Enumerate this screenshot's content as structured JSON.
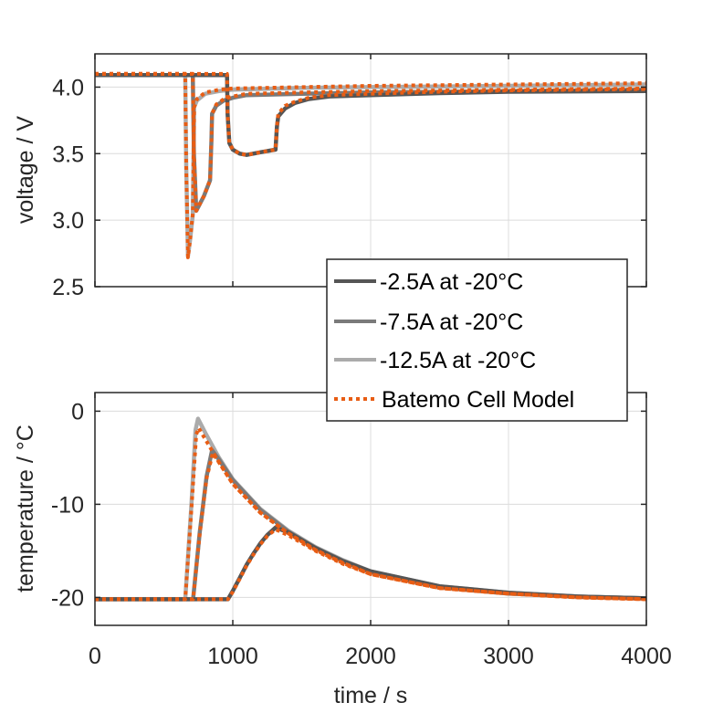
{
  "chart_data": [
    {
      "type": "line",
      "id": "voltage",
      "title": "",
      "xlabel": "",
      "ylabel": "voltage / V",
      "xlim": [
        0,
        4000
      ],
      "ylim": [
        2.5,
        4.25
      ],
      "xticks": [
        0,
        1000,
        2000,
        3000,
        4000
      ],
      "xtick_labels": [],
      "yticks": [
        2.5,
        3.0,
        3.5,
        4.0
      ],
      "ytick_labels": [
        "2.5",
        "3.0",
        "3.5",
        "4.0"
      ],
      "grid": true,
      "series": [
        {
          "name": "-12.5A at -20°C",
          "style": "solid",
          "color": "#ababab",
          "x": [
            0,
            655,
            662,
            675,
            690,
            710,
            715,
            720,
            740,
            800,
            900,
            1000,
            1500,
            2000,
            3000,
            4000
          ],
          "y": [
            4.09,
            4.09,
            3.4,
            2.73,
            2.85,
            3.04,
            3.5,
            3.85,
            3.9,
            3.95,
            3.97,
            3.98,
            3.995,
            4.0,
            4.01,
            4.02
          ]
        },
        {
          "name": "-7.5A at -20°C",
          "style": "solid",
          "color": "#7a7a7a",
          "x": [
            0,
            710,
            718,
            735,
            790,
            835,
            845,
            850,
            880,
            935,
            1000,
            1100,
            1500,
            2000,
            3000,
            4000
          ],
          "y": [
            4.09,
            4.09,
            3.5,
            3.07,
            3.18,
            3.3,
            3.6,
            3.8,
            3.86,
            3.9,
            3.92,
            3.94,
            3.95,
            3.96,
            3.97,
            3.98
          ]
        },
        {
          "name": "-2.5A at -20°C",
          "style": "solid",
          "color": "#555555",
          "x": [
            0,
            958,
            962,
            975,
            1000,
            1050,
            1100,
            1200,
            1310,
            1320,
            1330,
            1380,
            1450,
            1550,
            1700,
            2000,
            2500,
            3000,
            4000
          ],
          "y": [
            4.09,
            4.09,
            3.8,
            3.58,
            3.53,
            3.5,
            3.49,
            3.51,
            3.53,
            3.7,
            3.78,
            3.84,
            3.88,
            3.91,
            3.93,
            3.94,
            3.955,
            3.965,
            3.97
          ]
        },
        {
          "name": "Batemo Cell Model",
          "style": "dotted",
          "color": "#e85d14",
          "x": [
            0,
            655,
            662,
            675,
            690,
            710,
            715,
            720,
            740,
            800,
            900,
            1000,
            1500,
            2000,
            3000,
            4000
          ],
          "y": [
            4.1,
            4.1,
            3.4,
            2.72,
            2.85,
            3.05,
            3.5,
            3.85,
            3.91,
            3.96,
            3.98,
            3.99,
            4.0,
            4.01,
            4.02,
            4.03
          ]
        },
        {
          "name": "Batemo Cell Model",
          "style": "dotted",
          "color": "#e85d14",
          "x": [
            0,
            710,
            718,
            735,
            790,
            835,
            845,
            850,
            880,
            935,
            1000,
            1100,
            1500,
            2000,
            3000,
            4000
          ],
          "y": [
            4.1,
            4.1,
            3.5,
            3.07,
            3.18,
            3.3,
            3.6,
            3.8,
            3.87,
            3.91,
            3.93,
            3.95,
            3.96,
            3.97,
            3.98,
            3.99
          ]
        },
        {
          "name": "Batemo Cell Model",
          "style": "dotted",
          "color": "#e85d14",
          "x": [
            0,
            958,
            962,
            975,
            1000,
            1050,
            1100,
            1200,
            1310,
            1320,
            1330,
            1380,
            1450,
            1550,
            1700,
            2000,
            2500,
            3000,
            4000
          ],
          "y": [
            4.1,
            4.1,
            3.8,
            3.58,
            3.53,
            3.5,
            3.49,
            3.51,
            3.53,
            3.7,
            3.8,
            3.86,
            3.89,
            3.92,
            3.94,
            3.95,
            3.965,
            3.975,
            3.985
          ]
        }
      ],
      "legend": {
        "location": "bottom-right",
        "entries": [
          {
            "label": "-2.5A at -20°C",
            "color": "#555555",
            "style": "solid"
          },
          {
            "label": "-7.5A at -20°C",
            "color": "#7a7a7a",
            "style": "solid"
          },
          {
            "label": "-12.5A at -20°C",
            "color": "#ababab",
            "style": "solid"
          },
          {
            "label": "Batemo Cell Model",
            "color": "#e85d14",
            "style": "dotted"
          }
        ]
      }
    },
    {
      "type": "line",
      "id": "temperature",
      "title": "",
      "xlabel": "time / s",
      "ylabel": "temperature / °C",
      "xlim": [
        0,
        4000
      ],
      "ylim": [
        -23,
        2
      ],
      "xticks": [
        0,
        1000,
        2000,
        3000,
        4000
      ],
      "xtick_labels": [
        "0",
        "1000",
        "2000",
        "3000",
        "4000"
      ],
      "yticks": [
        -20,
        -10,
        0
      ],
      "ytick_labels": [
        "-20",
        "-10",
        "0"
      ],
      "grid": true,
      "series": [
        {
          "name": "-12.5A at -20°C",
          "style": "solid",
          "color": "#ababab",
          "x": [
            0,
            655,
            700,
            730,
            748,
            800,
            900,
            1000,
            1200,
            1400,
            1600,
            1800,
            2000,
            2500,
            3000,
            3500,
            4000
          ],
          "y": [
            -20.2,
            -20.2,
            -10,
            -2,
            -0.8,
            -2.3,
            -5,
            -7.3,
            -10.5,
            -12.8,
            -14.6,
            -16,
            -17.2,
            -18.8,
            -19.5,
            -19.9,
            -20.1
          ]
        },
        {
          "name": "-7.5A at -20°C",
          "style": "solid",
          "color": "#7a7a7a",
          "x": [
            0,
            712,
            760,
            810,
            850,
            900,
            1000,
            1200,
            1400,
            1600,
            1800,
            2000,
            2500,
            3000,
            3500,
            4000
          ],
          "y": [
            -20.2,
            -20.2,
            -13,
            -7,
            -4.2,
            -5.2,
            -7.4,
            -10.6,
            -12.9,
            -14.7,
            -16.1,
            -17.3,
            -18.9,
            -19.6,
            -19.9,
            -20.1
          ]
        },
        {
          "name": "-2.5A at -20°C",
          "style": "solid",
          "color": "#555555",
          "x": [
            0,
            965,
            1000,
            1050,
            1100,
            1150,
            1200,
            1250,
            1310,
            1400,
            1600,
            1800,
            2000,
            2500,
            3000,
            3500,
            4000
          ],
          "y": [
            -20.2,
            -20.2,
            -19.3,
            -17.9,
            -16.5,
            -15.3,
            -14.2,
            -13.3,
            -12.5,
            -13.0,
            -14.7,
            -16.1,
            -17.2,
            -18.8,
            -19.5,
            -19.9,
            -20.1
          ]
        },
        {
          "name": "Batemo Cell Model",
          "style": "dotted",
          "color": "#e85d14",
          "x": [
            0,
            655,
            700,
            735,
            752,
            800,
            900,
            1000,
            1200,
            1400,
            1600,
            1800,
            2000,
            2500,
            3000,
            3500,
            4000
          ],
          "y": [
            -20.2,
            -20.2,
            -10.5,
            -2.5,
            -1.8,
            -3,
            -5.5,
            -7.8,
            -10.9,
            -13.1,
            -14.9,
            -16.3,
            -17.5,
            -19,
            -19.6,
            -20,
            -20.2
          ]
        },
        {
          "name": "Batemo Cell Model",
          "style": "dotted",
          "color": "#e85d14",
          "x": [
            0,
            712,
            760,
            810,
            855,
            900,
            1000,
            1200,
            1400,
            1600,
            1800,
            2000,
            2500,
            3000,
            3500,
            4000
          ],
          "y": [
            -20.2,
            -20.2,
            -13.2,
            -7.2,
            -4.5,
            -5.5,
            -7.8,
            -10.9,
            -13.1,
            -14.9,
            -16.3,
            -17.5,
            -19,
            -19.6,
            -20,
            -20.2
          ]
        },
        {
          "name": "Batemo Cell Model",
          "style": "dotted",
          "color": "#e85d14",
          "x": [
            0,
            965,
            1000,
            1050,
            1100,
            1150,
            1200,
            1250,
            1310,
            1400,
            1600,
            1800,
            2000,
            2500,
            3000,
            3500,
            4000
          ],
          "y": [
            -20.2,
            -20.2,
            -19.4,
            -18,
            -16.6,
            -15.4,
            -14.3,
            -13.4,
            -12.7,
            -13.3,
            -15,
            -16.4,
            -17.5,
            -19,
            -19.6,
            -20,
            -20.2
          ]
        }
      ]
    }
  ]
}
